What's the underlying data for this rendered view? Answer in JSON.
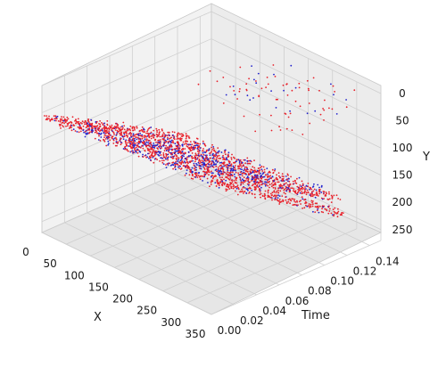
{
  "chart_data": {
    "type": "scatter",
    "projection": "3d",
    "title": "",
    "axes": {
      "x": {
        "label": "X",
        "range": [
          0,
          350
        ],
        "ticks": [
          "0",
          "50",
          "100",
          "150",
          "200",
          "250",
          "300",
          "350"
        ]
      },
      "y": {
        "label": "Y",
        "range": [
          0,
          270
        ],
        "inverted": true,
        "ticks": [
          "0",
          "50",
          "100",
          "150",
          "200",
          "250"
        ]
      },
      "time": {
        "label": "Time",
        "range": [
          0.0,
          0.15
        ],
        "ticks": [
          "0.00",
          "0.02",
          "0.04",
          "0.06",
          "0.08",
          "0.10",
          "0.12",
          "0.14"
        ]
      }
    },
    "grid": true,
    "colors": {
      "positive": "#e8212b",
      "negative": "#2222cc"
    },
    "series": [
      {
        "color": "red",
        "description_of_distribution": "dense events; 9 diagonal ridges along X axis",
        "ridge_rows": [
          {
            "y": 55,
            "x": [
              10,
              190
            ],
            "t": [
              0.0,
              0.045
            ]
          },
          {
            "y": 80,
            "x": [
              10,
              200
            ],
            "t": [
              0.015,
              0.06
            ]
          },
          {
            "y": 105,
            "x": [
              10,
              210
            ],
            "t": [
              0.03,
              0.075
            ]
          },
          {
            "y": 130,
            "x": [
              20,
              220
            ],
            "t": [
              0.045,
              0.09
            ]
          },
          {
            "y": 155,
            "x": [
              30,
              230
            ],
            "t": [
              0.06,
              0.105
            ]
          },
          {
            "y": 180,
            "x": [
              40,
              240
            ],
            "t": [
              0.075,
              0.12
            ]
          },
          {
            "y": 205,
            "x": [
              50,
              250
            ],
            "t": [
              0.09,
              0.135
            ]
          },
          {
            "y": 230,
            "x": [
              60,
              260
            ],
            "t": [
              0.105,
              0.15
            ]
          },
          {
            "y": 255,
            "x": [
              70,
              270
            ],
            "t": [
              0.12,
              0.15
            ]
          }
        ]
      },
      {
        "color": "blue",
        "description_of_distribution": "sparser events interleaved on the same ridges"
      }
    ]
  }
}
